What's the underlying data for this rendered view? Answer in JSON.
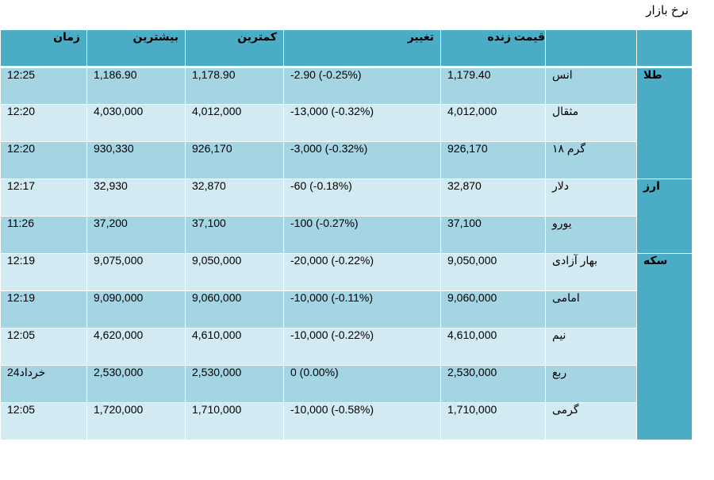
{
  "page_title": "نرخ بازار",
  "headers": {
    "live_price": "قیمت زنده",
    "change": "تغییر",
    "low": "کمترین",
    "high": "بیشترین",
    "time": "زمان"
  },
  "categories": {
    "gold": "طلا",
    "currency": "ارز",
    "coin": "سکه"
  },
  "rows": [
    {
      "name": "انس",
      "live": "1,179.40",
      "change": "-2.90 (-0.25%)",
      "low": "1,178.90",
      "high": "1,186.90",
      "time": "12:25"
    },
    {
      "name": "مثقال",
      "live": "4,012,000",
      "change": "-13,000 (-0.32%)",
      "low": "4,012,000",
      "high": "4,030,000",
      "time": "12:20"
    },
    {
      "name": "گرم ۱۸",
      "live": "926,170",
      "change": "-3,000 (-0.32%)",
      "low": "926,170",
      "high": "930,330",
      "time": "12:20"
    },
    {
      "name": "دلار",
      "live": "32,870",
      "change": "-60 (-0.18%)",
      "low": "32,870",
      "high": "32,930",
      "time": "12:17"
    },
    {
      "name": "یورو",
      "live": "37,100",
      "change": "-100 (-0.27%)",
      "low": "37,100",
      "high": "37,200",
      "time": "11:26"
    },
    {
      "name": "بهار آزادی",
      "live": "9,050,000",
      "change": "-20,000 (-0.22%)",
      "low": "9,050,000",
      "high": "9,075,000",
      "time": "12:19"
    },
    {
      "name": "امامی",
      "live": "9,060,000",
      "change": "-10,000 (-0.11%)",
      "low": "9,060,000",
      "high": "9,090,000",
      "time": "12:19"
    },
    {
      "name": "نیم",
      "live": "4,610,000",
      "change": "-10,000 (-0.22%)",
      "low": "4,610,000",
      "high": "4,620,000",
      "time": "12:05"
    },
    {
      "name": "ربع",
      "live": "2,530,000",
      "change": "0 (0.00%)",
      "low": "2,530,000",
      "high": "2,530,000",
      "time": "24خرداد"
    },
    {
      "name": "گرمی",
      "live": "1,710,000",
      "change": "-10,000 (-0.58%)",
      "low": "1,710,000",
      "high": "1,720,000",
      "time": "12:05"
    }
  ],
  "colors": {
    "header": "#4bacc6",
    "row_dark": "#a5d5e2",
    "row_light": "#d2eaf1"
  }
}
